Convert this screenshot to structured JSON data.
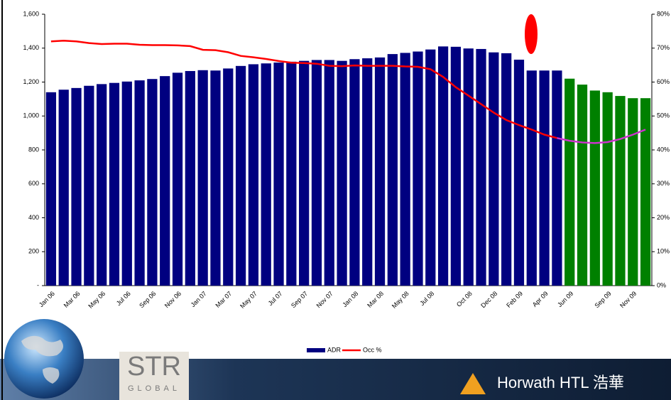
{
  "chart_data": {
    "type": "bar",
    "categories": [
      "Jan 06",
      null,
      "Mar 06",
      null,
      "May 06",
      null,
      "Jul 06",
      null,
      "Sep 06",
      null,
      "Nov 06",
      null,
      "Jan 07",
      null,
      "Mar 07",
      null,
      "May 07",
      null,
      "Jul 07",
      null,
      "Sep 07",
      null,
      "Nov 07",
      null,
      "Jan 08",
      null,
      "Mar 08",
      null,
      "May 08",
      null,
      "Jul 08",
      null,
      null,
      "Oct 08",
      null,
      "Dec 08",
      null,
      "Feb 09",
      null,
      "Apr 09",
      null,
      "Jun 09",
      null,
      null,
      "Sep 09",
      null,
      "Nov 09",
      null
    ],
    "series": [
      {
        "name": "ADR",
        "color": "#000080",
        "forecast_color": "#008000",
        "forecast_from": 41,
        "values": [
          1140,
          1155,
          1165,
          1178,
          1188,
          1195,
          1203,
          1210,
          1218,
          1235,
          1255,
          1265,
          1270,
          1268,
          1280,
          1295,
          1305,
          1310,
          1315,
          1320,
          1325,
          1330,
          1330,
          1325,
          1335,
          1340,
          1345,
          1365,
          1372,
          1380,
          1392,
          1410,
          1408,
          1398,
          1395,
          1375,
          1370,
          1332,
          1268,
          1268,
          1268,
          1220,
          1185,
          1150,
          1140,
          1118,
          1105,
          1105
        ]
      },
      {
        "name": "Occ %",
        "color": "#ff0000",
        "forecast_color": "#cc33cc",
        "forecast_from": 40,
        "axis": "y2",
        "values": [
          72,
          72.2,
          72,
          71.5,
          71.2,
          71.3,
          71.3,
          71,
          70.9,
          70.9,
          70.8,
          70.6,
          69.5,
          69.4,
          68.8,
          67.7,
          67.3,
          66.8,
          66.2,
          65.7,
          65.6,
          65.4,
          64.8,
          64.7,
          64.9,
          64.8,
          64.8,
          64.8,
          64.6,
          64.5,
          63.8,
          61.5,
          58.5,
          56,
          53.5,
          51,
          48.8,
          47.3,
          46,
          44.5,
          43.5,
          42.7,
          42.2,
          42,
          42.3,
          43.2,
          44.5,
          46
        ]
      }
    ],
    "ylim": [
      0,
      1600
    ],
    "yticks": [
      {
        "value": 0,
        "label": "-"
      },
      200,
      400,
      600,
      800,
      {
        "value": 1000,
        "label": "1,000"
      },
      {
        "value": 1200,
        "label": "1,200"
      },
      {
        "value": 1400,
        "label": "1,400"
      },
      {
        "value": 1600,
        "label": "1,600"
      }
    ],
    "y2lim": [
      0,
      80
    ],
    "y2ticks": [
      {
        "value": 0,
        "label": "0%"
      },
      {
        "value": 10,
        "label": "10%"
      },
      {
        "value": 20,
        "label": "20%"
      },
      {
        "value": 30,
        "label": "30%"
      },
      {
        "value": 40,
        "label": "40%"
      },
      {
        "value": 50,
        "label": "50%"
      },
      {
        "value": 60,
        "label": "60%"
      },
      {
        "value": 70,
        "label": "70%"
      },
      {
        "value": 80,
        "label": "80%"
      }
    ],
    "legend": "bottom"
  },
  "footer": {
    "logo_left": "STR",
    "logo_left_sub": "GLOBAL",
    "logo_right": "Horwath HTL 浩華"
  }
}
